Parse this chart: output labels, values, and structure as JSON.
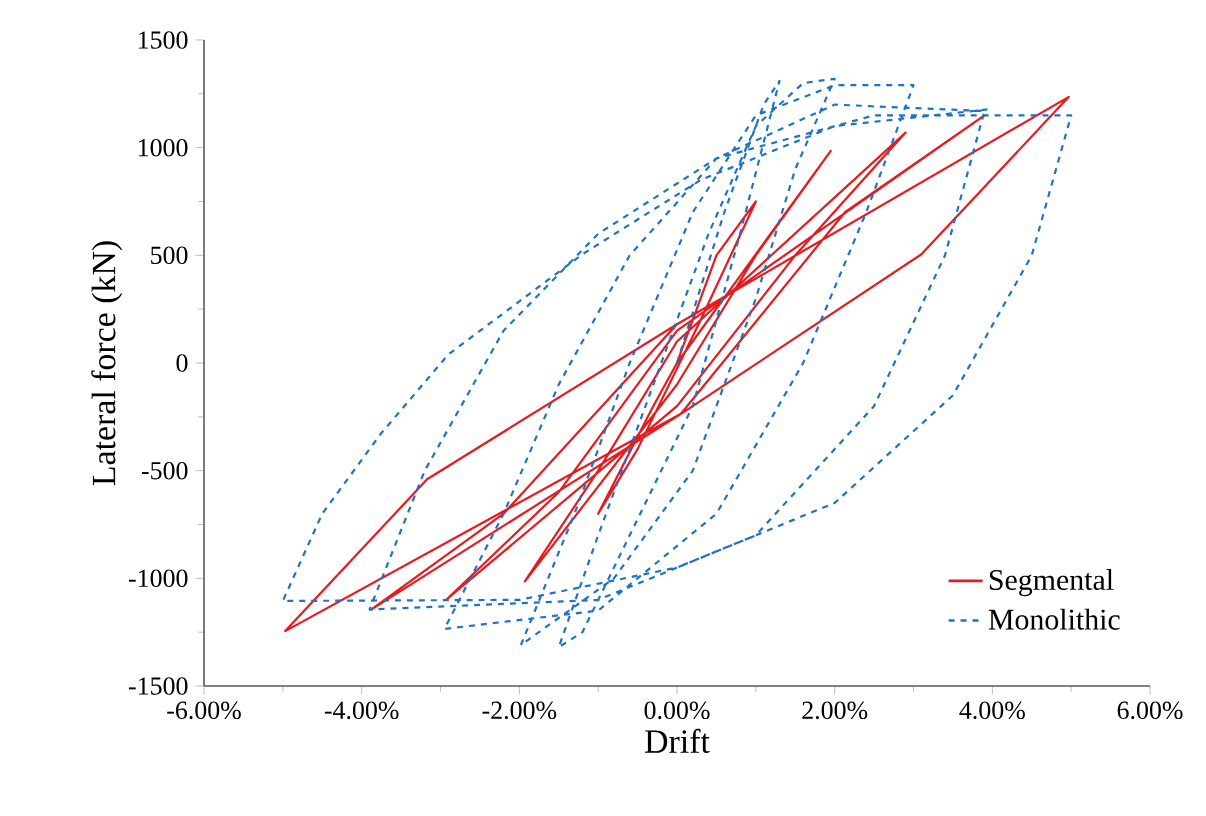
{
  "chart_data": {
    "type": "line",
    "xlabel": "Drift",
    "ylabel": "Lateral force (kN)",
    "xlim": [
      -6,
      6
    ],
    "ylim": [
      -1500,
      1500
    ],
    "xticks": [
      {
        "value": -6,
        "label": "-6.00%"
      },
      {
        "value": -4,
        "label": "-4.00%"
      },
      {
        "value": -2,
        "label": "-2.00%"
      },
      {
        "value": 0,
        "label": "0.00%"
      },
      {
        "value": 2,
        "label": "2.00%"
      },
      {
        "value": 4,
        "label": "4.00%"
      },
      {
        "value": 6,
        "label": "6.00%"
      }
    ],
    "yticks": [
      -1500,
      -1000,
      -500,
      0,
      500,
      1000,
      1500
    ],
    "grid": false,
    "legend": "bottom right",
    "marker": "none",
    "series": [
      {
        "name": "Segmental",
        "color": "#e8191f",
        "line_style": "solid",
        "x": [
          0,
          0.5,
          1.0,
          0.3,
          -0.5,
          -1.0,
          -0.3,
          0,
          1.95,
          1.0,
          0,
          -1.93,
          -1.0,
          0,
          2.9,
          1.5,
          0,
          -2.92,
          -1.5,
          0,
          3.9,
          2.13,
          0.05,
          -3.88,
          -2.2,
          0,
          4.97,
          3.1,
          0.05,
          -4.97,
          -3.17,
          0
        ],
        "values": [
          0,
          500,
          750,
          200,
          -400,
          -700,
          -200,
          0,
          985,
          500,
          -100,
          -1014,
          -500,
          100,
          1070,
          500,
          -200,
          -1097,
          -600,
          150,
          1150,
          700,
          -236,
          -1145,
          -700,
          180,
          1236,
          505,
          -236,
          -1245,
          -540,
          180
        ]
      },
      {
        "name": "Monolithic",
        "color": "#1f72c4",
        "line_style": "dashed",
        "x": [
          0,
          0.6,
          1.1,
          1.3,
          0.8,
          0.2,
          -0.6,
          -1.2,
          -1.5,
          -1.0,
          -0.3,
          0.4,
          1.0,
          1.6,
          2.0,
          1.5,
          1.0,
          0.2,
          -0.8,
          -1.98,
          -1.3,
          -0.6,
          0.2,
          1.0,
          2.0,
          3.0,
          2.4,
          1.6,
          0.5,
          -1.0,
          -2.95,
          -2.2,
          -1.5,
          -0.6,
          0.5,
          2.0,
          3.9,
          3.4,
          2.5,
          1.0,
          -1.0,
          -3.9,
          -3.2,
          -2.2,
          -1.0,
          0.5,
          2.5,
          5.0,
          4.5,
          3.5,
          2.0,
          0,
          -2.0,
          -5.0,
          -4.5,
          -3.76,
          -2.9,
          -1.2,
          0.3,
          2.0,
          4.0
        ],
        "values": [
          0,
          700,
          1200,
          1310,
          600,
          -200,
          -800,
          -1250,
          -1320,
          -800,
          -100,
          600,
          1100,
          1300,
          1320,
          900,
          300,
          -500,
          -1000,
          -1310,
          -700,
          0,
          700,
          1150,
          1290,
          1290,
          700,
          0,
          -700,
          -1150,
          -1235,
          -700,
          -100,
          500,
          950,
          1200,
          1170,
          500,
          -200,
          -800,
          -1100,
          -1145,
          -500,
          150,
          600,
          950,
          1150,
          1150,
          500,
          -150,
          -650,
          -950,
          -1100,
          -1105,
          -700,
          -330,
          40,
          505,
          850,
          1100,
          1180
        ]
      }
    ]
  }
}
